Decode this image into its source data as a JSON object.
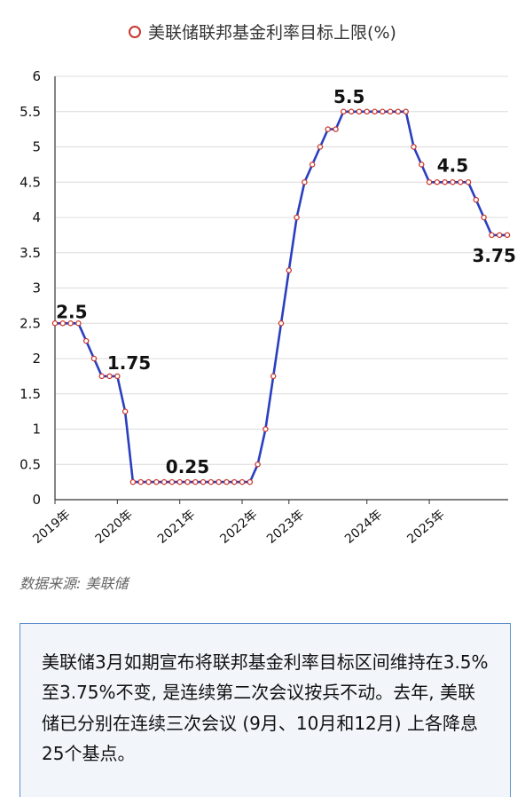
{
  "chart_data": {
    "type": "line",
    "title": "美联储联邦基金利率目标上限(%)",
    "series": [
      {
        "name": "美联储联邦基金利率目标上限(%)",
        "values": [
          2.5,
          2.5,
          2.5,
          2.5,
          2.25,
          2.0,
          1.75,
          1.75,
          1.75,
          1.25,
          0.25,
          0.25,
          0.25,
          0.25,
          0.25,
          0.25,
          0.25,
          0.25,
          0.25,
          0.25,
          0.25,
          0.25,
          0.25,
          0.25,
          0.25,
          0.25,
          0.5,
          1.0,
          1.75,
          2.5,
          3.25,
          4.0,
          4.5,
          4.75,
          5.0,
          5.25,
          5.25,
          5.5,
          5.5,
          5.5,
          5.5,
          5.5,
          5.5,
          5.5,
          5.5,
          5.5,
          5.0,
          4.75,
          4.5,
          4.5,
          4.5,
          4.5,
          4.5,
          4.5,
          4.25,
          4.0,
          3.75,
          3.75,
          3.75
        ]
      }
    ],
    "xticks": [
      "2019年",
      "2020年",
      "2021年",
      "2022年",
      "2023年",
      "2024年",
      "2025年"
    ],
    "yticks": [
      "0",
      "0.5",
      "1",
      "1.5",
      "2",
      "2.5",
      "3",
      "3.5",
      "4",
      "4.5",
      "5",
      "5.5",
      "6"
    ],
    "ylim": [
      0,
      6
    ],
    "grid": true,
    "annotations": [
      {
        "index": 1,
        "text": "2.5"
      },
      {
        "index": 7,
        "text": "1.75"
      },
      {
        "index": 17,
        "text": "0.25"
      },
      {
        "index": 40,
        "text": "5.5"
      },
      {
        "index": 51,
        "text": "4.5"
      },
      {
        "index": 57,
        "text": "3.75"
      }
    ],
    "legend_position": "top-center",
    "line_color": "#2a3fbf",
    "marker_color": "#c8372d"
  },
  "source": "数据来源: 美联储",
  "note": "美联储3月如期宣布将联邦基金利率目标区间维持在3.5%至3.75%不变, 是连续第二次会议按兵不动。去年, 美联储已分别在连续三次会议 (9月、10月和12月) 上各降息25个基点。"
}
